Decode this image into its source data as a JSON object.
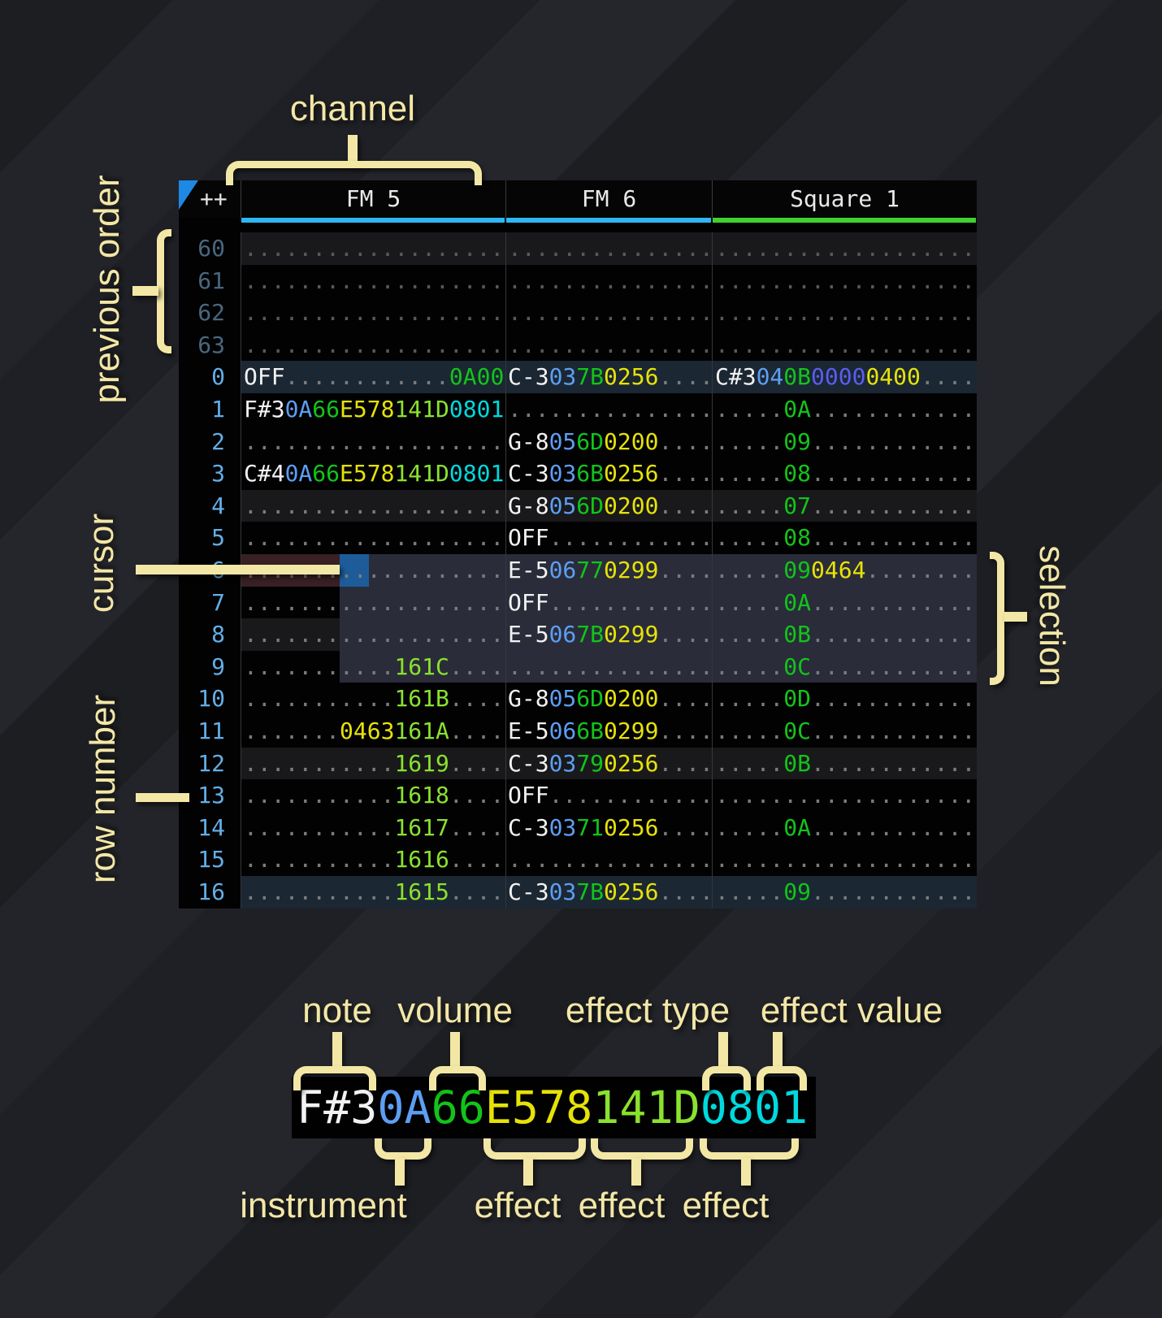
{
  "annotations": {
    "channel": "channel",
    "previous_order": "previous order",
    "cursor": "cursor",
    "row_number": "row number",
    "selection": "selection",
    "note": "note",
    "volume": "volume",
    "effect_type": "effect type",
    "effect_value": "effect value",
    "instrument": "instrument",
    "effects": [
      "effect",
      "effect",
      "effect"
    ],
    "accent_color": "#f3e7a6"
  },
  "tracker": {
    "corner_label": "++",
    "corner_triangle_color": "#1e88e5",
    "channels": [
      {
        "name": "FM 5",
        "underline_color": "#2db7f3"
      },
      {
        "name": "FM 6",
        "underline_color": "#2db7f3"
      },
      {
        "name": "Square 1",
        "underline_color": "#3ed32d"
      }
    ],
    "colors": {
      "note": "#f2f2f2",
      "instrument": "#5d9ef3",
      "volume": "#12c41a",
      "effect_yellow": "#e6e208",
      "effect_lime": "#8ae22e",
      "effect_cyan": "#00d9de",
      "effect_purple": "#5c5cf2",
      "empty_dot": "#7b7b7b",
      "row_number_active": "#63aee6",
      "row_number_previous": "#47687f",
      "cursor_cell": "#1d5c99",
      "cursor_row": "#392024",
      "selection": "#2a2c3a",
      "highlight_4": "#19191b",
      "highlight_16": "#1b2733"
    },
    "rows": [
      {
        "num": "60",
        "muted": true,
        "fm5": [
          [
            "d",
            "..................."
          ]
        ],
        "fm6": [
          [
            "d",
            "..............."
          ]
        ],
        "sq1": [
          [
            "d",
            "..................."
          ]
        ]
      },
      {
        "num": "61",
        "muted": true,
        "fm5": [
          [
            "d",
            "..................."
          ]
        ],
        "fm6": [
          [
            "d",
            "..............."
          ]
        ],
        "sq1": [
          [
            "d",
            "..................."
          ]
        ]
      },
      {
        "num": "62",
        "muted": true,
        "fm5": [
          [
            "d",
            "..................."
          ]
        ],
        "fm6": [
          [
            "d",
            "..............."
          ]
        ],
        "sq1": [
          [
            "d",
            "..................."
          ]
        ]
      },
      {
        "num": "63",
        "muted": true,
        "fm5": [
          [
            "d",
            "..................."
          ]
        ],
        "fm6": [
          [
            "d",
            "..............."
          ]
        ],
        "sq1": [
          [
            "d",
            "..................."
          ]
        ]
      },
      {
        "num": "0",
        "fm5": [
          [
            "w",
            "OFF"
          ],
          [
            "d",
            "............"
          ],
          [
            "g",
            "0A00"
          ]
        ],
        "fm6": [
          [
            "w",
            "C-3"
          ],
          [
            "i",
            "03"
          ],
          [
            "g",
            "7B"
          ],
          [
            "y",
            "0256"
          ],
          [
            "d",
            "...."
          ]
        ],
        "sq1": [
          [
            "w",
            "C#3"
          ],
          [
            "i",
            "04"
          ],
          [
            "g",
            "0B"
          ],
          [
            "p",
            "0000"
          ],
          [
            "y",
            "0400"
          ],
          [
            "d",
            "...."
          ]
        ]
      },
      {
        "num": "1",
        "fm5": [
          [
            "w",
            "F#3"
          ],
          [
            "i",
            "0A"
          ],
          [
            "g",
            "66"
          ],
          [
            "y",
            "E578"
          ],
          [
            "l",
            "141D"
          ],
          [
            "c",
            "0801"
          ]
        ],
        "fm6": [
          [
            "d",
            "..............."
          ]
        ],
        "sq1": [
          [
            "d",
            "....."
          ],
          [
            "g",
            "0A"
          ],
          [
            "d",
            "............"
          ]
        ]
      },
      {
        "num": "2",
        "fm5": [
          [
            "d",
            "..................."
          ]
        ],
        "fm6": [
          [
            "w",
            "G-8"
          ],
          [
            "i",
            "05"
          ],
          [
            "g",
            "6D"
          ],
          [
            "y",
            "0200"
          ],
          [
            "d",
            "...."
          ]
        ],
        "sq1": [
          [
            "d",
            "....."
          ],
          [
            "g",
            "09"
          ],
          [
            "d",
            "............"
          ]
        ]
      },
      {
        "num": "3",
        "fm5": [
          [
            "w",
            "C#4"
          ],
          [
            "i",
            "0A"
          ],
          [
            "g",
            "66"
          ],
          [
            "y",
            "E578"
          ],
          [
            "l",
            "141D"
          ],
          [
            "c",
            "0801"
          ]
        ],
        "fm6": [
          [
            "w",
            "C-3"
          ],
          [
            "i",
            "03"
          ],
          [
            "g",
            "6B"
          ],
          [
            "y",
            "0256"
          ],
          [
            "d",
            "...."
          ]
        ],
        "sq1": [
          [
            "d",
            "....."
          ],
          [
            "g",
            "08"
          ],
          [
            "d",
            "............"
          ]
        ]
      },
      {
        "num": "4",
        "fm5": [
          [
            "d",
            "..................."
          ]
        ],
        "fm6": [
          [
            "w",
            "G-8"
          ],
          [
            "i",
            "05"
          ],
          [
            "g",
            "6D"
          ],
          [
            "y",
            "0200"
          ],
          [
            "d",
            "...."
          ]
        ],
        "sq1": [
          [
            "d",
            "....."
          ],
          [
            "g",
            "07"
          ],
          [
            "d",
            "............"
          ]
        ]
      },
      {
        "num": "5",
        "fm5": [
          [
            "d",
            "..................."
          ]
        ],
        "fm6": [
          [
            "w",
            "OFF"
          ],
          [
            "d",
            "............"
          ]
        ],
        "sq1": [
          [
            "d",
            "....."
          ],
          [
            "g",
            "08"
          ],
          [
            "d",
            "............"
          ]
        ]
      },
      {
        "num": "6",
        "fm5": [
          [
            "d",
            "..................."
          ]
        ],
        "fm6": [
          [
            "w",
            "E-5"
          ],
          [
            "i",
            "06"
          ],
          [
            "g",
            "77"
          ],
          [
            "y",
            "0299"
          ],
          [
            "d",
            "...."
          ]
        ],
        "sq1": [
          [
            "d",
            "....."
          ],
          [
            "g",
            "09"
          ],
          [
            "y",
            "0464"
          ],
          [
            "d",
            "........"
          ]
        ]
      },
      {
        "num": "7",
        "fm5": [
          [
            "d",
            "..................."
          ]
        ],
        "fm6": [
          [
            "w",
            "OFF"
          ],
          [
            "d",
            "............"
          ]
        ],
        "sq1": [
          [
            "d",
            "....."
          ],
          [
            "g",
            "0A"
          ],
          [
            "d",
            "............"
          ]
        ]
      },
      {
        "num": "8",
        "fm5": [
          [
            "d",
            "..................."
          ]
        ],
        "fm6": [
          [
            "w",
            "E-5"
          ],
          [
            "i",
            "06"
          ],
          [
            "g",
            "7B"
          ],
          [
            "y",
            "0299"
          ],
          [
            "d",
            "...."
          ]
        ],
        "sq1": [
          [
            "d",
            "....."
          ],
          [
            "g",
            "0B"
          ],
          [
            "d",
            "............"
          ]
        ]
      },
      {
        "num": "9",
        "fm5": [
          [
            "d",
            "..........."
          ],
          [
            "l",
            "161C"
          ],
          [
            "d",
            "...."
          ]
        ],
        "fm6": [
          [
            "d",
            "..............."
          ]
        ],
        "sq1": [
          [
            "d",
            "....."
          ],
          [
            "g",
            "0C"
          ],
          [
            "d",
            "............"
          ]
        ]
      },
      {
        "num": "10",
        "fm5": [
          [
            "d",
            "..........."
          ],
          [
            "l",
            "161B"
          ],
          [
            "d",
            "...."
          ]
        ],
        "fm6": [
          [
            "w",
            "G-8"
          ],
          [
            "i",
            "05"
          ],
          [
            "g",
            "6D"
          ],
          [
            "y",
            "0200"
          ],
          [
            "d",
            "...."
          ]
        ],
        "sq1": [
          [
            "d",
            "....."
          ],
          [
            "g",
            "0D"
          ],
          [
            "d",
            "............"
          ]
        ]
      },
      {
        "num": "11",
        "fm5": [
          [
            "d",
            "......."
          ],
          [
            "y",
            "0463"
          ],
          [
            "l",
            "161A"
          ],
          [
            "d",
            "...."
          ]
        ],
        "fm6": [
          [
            "w",
            "E-5"
          ],
          [
            "i",
            "06"
          ],
          [
            "g",
            "6B"
          ],
          [
            "y",
            "0299"
          ],
          [
            "d",
            "...."
          ]
        ],
        "sq1": [
          [
            "d",
            "....."
          ],
          [
            "g",
            "0C"
          ],
          [
            "d",
            "............"
          ]
        ]
      },
      {
        "num": "12",
        "fm5": [
          [
            "d",
            "..........."
          ],
          [
            "l",
            "1619"
          ],
          [
            "d",
            "...."
          ]
        ],
        "fm6": [
          [
            "w",
            "C-3"
          ],
          [
            "i",
            "03"
          ],
          [
            "g",
            "79"
          ],
          [
            "y",
            "0256"
          ],
          [
            "d",
            "...."
          ]
        ],
        "sq1": [
          [
            "d",
            "....."
          ],
          [
            "g",
            "0B"
          ],
          [
            "d",
            "............"
          ]
        ]
      },
      {
        "num": "13",
        "fm5": [
          [
            "d",
            "..........."
          ],
          [
            "l",
            "1618"
          ],
          [
            "d",
            "...."
          ]
        ],
        "fm6": [
          [
            "w",
            "OFF"
          ],
          [
            "d",
            "............"
          ]
        ],
        "sq1": [
          [
            "d",
            "..................."
          ]
        ]
      },
      {
        "num": "14",
        "fm5": [
          [
            "d",
            "..........."
          ],
          [
            "l",
            "1617"
          ],
          [
            "d",
            "...."
          ]
        ],
        "fm6": [
          [
            "w",
            "C-3"
          ],
          [
            "i",
            "03"
          ],
          [
            "g",
            "71"
          ],
          [
            "y",
            "0256"
          ],
          [
            "d",
            "...."
          ]
        ],
        "sq1": [
          [
            "d",
            "....."
          ],
          [
            "g",
            "0A"
          ],
          [
            "d",
            "............"
          ]
        ]
      },
      {
        "num": "15",
        "fm5": [
          [
            "d",
            "..........."
          ],
          [
            "l",
            "1616"
          ],
          [
            "d",
            "...."
          ]
        ],
        "fm6": [
          [
            "d",
            "..............."
          ]
        ],
        "sq1": [
          [
            "d",
            "..................."
          ]
        ]
      },
      {
        "num": "16",
        "fm5": [
          [
            "d",
            "..........."
          ],
          [
            "l",
            "1615"
          ],
          [
            "d",
            "...."
          ]
        ],
        "fm6": [
          [
            "w",
            "C-3"
          ],
          [
            "i",
            "03"
          ],
          [
            "g",
            "7B"
          ],
          [
            "y",
            "0256"
          ],
          [
            "d",
            "...."
          ]
        ],
        "sq1": [
          [
            "d",
            "....."
          ],
          [
            "g",
            "09"
          ],
          [
            "d",
            "............"
          ]
        ]
      }
    ]
  },
  "breakdown": {
    "segments": [
      [
        "w",
        "F#3"
      ],
      [
        "i",
        "0A"
      ],
      [
        "g",
        "66"
      ],
      [
        "y",
        "E578"
      ],
      [
        "l",
        "141D"
      ],
      [
        "c",
        "0801"
      ]
    ]
  }
}
